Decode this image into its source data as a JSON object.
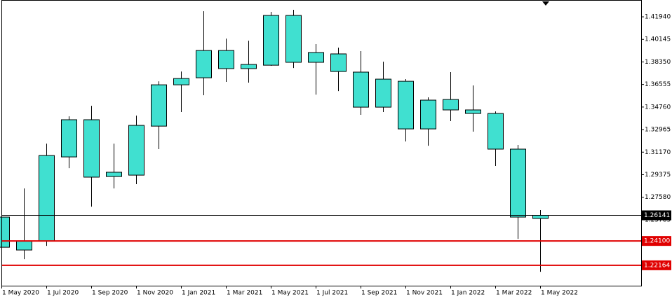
{
  "chart_data": {
    "type": "candlestick",
    "categories": [
      "1 May 2020",
      null,
      "1 Jul 2020",
      null,
      "1 Sep 2020",
      null,
      "1 Nov 2020",
      null,
      "1 Jan 2021",
      null,
      "1 Mar 2021",
      null,
      "1 May 2021",
      null,
      "1 Jul 2021",
      null,
      "1 Sep 2021",
      null,
      "1 Nov 2021",
      null,
      "1 Jan 2022",
      null,
      "1 Mar 2022",
      null,
      "1 May 2022"
    ],
    "open": [
      1.26,
      1.241,
      1.241,
      1.3079,
      1.3375,
      1.2923,
      1.2934,
      1.3324,
      1.3653,
      1.3709,
      1.3926,
      1.3782,
      1.3809,
      1.4205,
      1.3832,
      1.3899,
      1.3754,
      1.3475,
      1.3681,
      1.3302,
      1.3536,
      1.3453,
      1.3425,
      1.3141,
      1.2589
    ],
    "high": [
      1.26,
      1.2828,
      1.3185,
      1.3402,
      1.3486,
      1.3185,
      1.3408,
      1.3681,
      1.3759,
      1.4239,
      1.4021,
      1.4004,
      1.4233,
      1.425,
      1.3977,
      1.3949,
      1.3921,
      1.3837,
      1.3698,
      1.3553,
      1.3754,
      1.3648,
      1.3441,
      1.3174,
      1.2656
    ],
    "low": [
      1.236,
      1.2265,
      1.2371,
      1.299,
      1.2683,
      1.2828,
      1.2862,
      1.3141,
      1.3436,
      1.357,
      1.3676,
      1.367,
      1.3804,
      1.3787,
      1.3575,
      1.3603,
      1.3414,
      1.3436,
      1.3202,
      1.3168,
      1.3364,
      1.328,
      1.3007,
      1.2427,
      1.2165
    ],
    "close": [
      1.236,
      1.2338,
      1.309,
      1.3375,
      1.2918,
      1.2957,
      1.333,
      1.3653,
      1.3703,
      1.3926,
      1.3782,
      1.3815,
      1.4205,
      1.3832,
      1.391,
      1.3759,
      1.3475,
      1.3698,
      1.3302,
      1.3531,
      1.3453,
      1.3425,
      1.3141,
      1.26,
      1.2614
    ],
    "color": "#40e0d0",
    "ylim": [
      1.2054,
      1.4328
    ],
    "yticks": [
      {
        "value": 1.25785,
        "label": "1.25785"
      },
      {
        "value": 1.2758,
        "label": "1.27580"
      },
      {
        "value": 1.29375,
        "label": "1.29375"
      },
      {
        "value": 1.3117,
        "label": "1.31170"
      },
      {
        "value": 1.32965,
        "label": "1.32965"
      },
      {
        "value": 1.3476,
        "label": "1.34760"
      },
      {
        "value": 1.36555,
        "label": "1.36555"
      },
      {
        "value": 1.3835,
        "label": "1.38350"
      },
      {
        "value": 1.40145,
        "label": "1.40145"
      },
      {
        "value": 1.4194,
        "label": "1.41940"
      }
    ],
    "hlines": [
      {
        "value": 1.26141,
        "label": "1.26141",
        "color": "#000000"
      },
      {
        "value": 1.241,
        "label": "1.24100",
        "color": "#e00000"
      },
      {
        "value": 1.22164,
        "label": "1.22164",
        "color": "#e00000"
      }
    ]
  }
}
